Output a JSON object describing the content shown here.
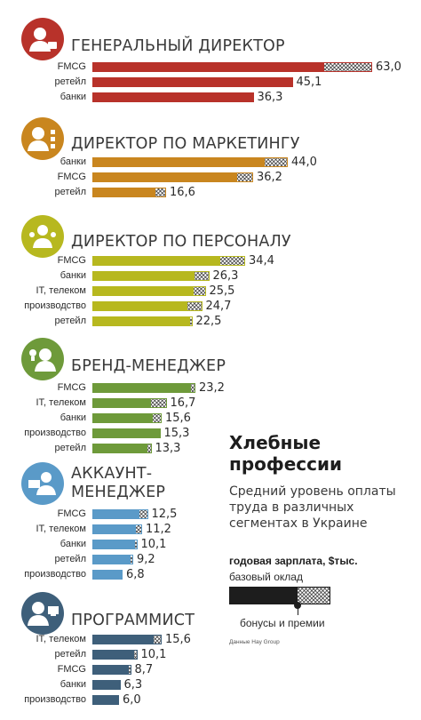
{
  "chart_data": {
    "type": "bar",
    "orientation": "horizontal",
    "stacked_parts": [
      "базовый оклад",
      "бонусы и премии"
    ],
    "title": "Хлебные профессии",
    "subtitle": "Средний уровень оплаты труда в различных сегментах в Украине",
    "unit": "годовая зарплата, $тыс.",
    "legend": {
      "base": "базовый оклад",
      "bonus": "бонусы и премии"
    },
    "source": "Данные Hay Group",
    "groups": [
      {
        "title": "ГЕНЕРАЛЬНЫЙ ДИРЕКТОР",
        "color": "#b8322a",
        "icon": "director-icon",
        "rows": [
          {
            "label": "FMCG",
            "value": 63.0,
            "display": "63,0",
            "bonus": 11.0
          },
          {
            "label": "ретейл",
            "value": 45.1,
            "display": "45,1",
            "bonus": 0
          },
          {
            "label": "банки",
            "value": 36.3,
            "display": "36,3",
            "bonus": 0
          }
        ]
      },
      {
        "title": "ДИРЕКТОР ПО МАРКЕТИНГУ",
        "color": "#c9861f",
        "icon": "marketing-icon",
        "rows": [
          {
            "label": "банки",
            "value": 44.0,
            "display": "44,0",
            "bonus": 5.5
          },
          {
            "label": "FMCG",
            "value": 36.2,
            "display": "36,2",
            "bonus": 3.8
          },
          {
            "label": "ретейл",
            "value": 16.6,
            "display": "16,6",
            "bonus": 2.6
          }
        ]
      },
      {
        "title": "ДИРЕКТОР ПО ПЕРСОНАЛУ",
        "color": "#b7b81f",
        "icon": "hr-icon",
        "rows": [
          {
            "label": "FMCG",
            "value": 34.4,
            "display": "34,4",
            "bonus": 5.8
          },
          {
            "label": "банки",
            "value": 26.3,
            "display": "26,3",
            "bonus": 3.6
          },
          {
            "label": "IT, телеком",
            "value": 25.5,
            "display": "25,5",
            "bonus": 3.0
          },
          {
            "label": "производство",
            "value": 24.7,
            "display": "24,7",
            "bonus": 3.6
          },
          {
            "label": "ретейл",
            "value": 22.5,
            "display": "22,5",
            "bonus": 0.8
          }
        ]
      },
      {
        "title": "БРЕНД-МЕНЕДЖЕР",
        "color": "#6e9a3a",
        "icon": "brand-icon",
        "rows": [
          {
            "label": "FMCG",
            "value": 23.2,
            "display": "23,2",
            "bonus": 1.2
          },
          {
            "label": "IT, телеком",
            "value": 16.7,
            "display": "16,7",
            "bonus": 3.8
          },
          {
            "label": "банки",
            "value": 15.6,
            "display": "15,6",
            "bonus": 2.2
          },
          {
            "label": "производство",
            "value": 15.3,
            "display": "15,3",
            "bonus": 0.4
          },
          {
            "label": "ретейл",
            "value": 13.3,
            "display": "13,3",
            "bonus": 1.2
          }
        ]
      },
      {
        "title": "АККАУНТ-\nМЕНЕДЖЕР",
        "color": "#5a9ac8",
        "icon": "account-icon",
        "rows": [
          {
            "label": "FMCG",
            "value": 12.5,
            "display": "12,5",
            "bonus": 2.2
          },
          {
            "label": "IT, телеком",
            "value": 11.2,
            "display": "11,2",
            "bonus": 1.6
          },
          {
            "label": "банки",
            "value": 10.1,
            "display": "10,1",
            "bonus": 0.8
          },
          {
            "label": "ретейл",
            "value": 9.2,
            "display": "9,2",
            "bonus": 0.8
          },
          {
            "label": "производство",
            "value": 6.8,
            "display": "6,8",
            "bonus": 0.4
          }
        ]
      },
      {
        "title": "ПРОГРАММИСТ",
        "color": "#3e5f7a",
        "icon": "programmer-icon",
        "rows": [
          {
            "label": "IT, телеком",
            "value": 15.6,
            "display": "15,6",
            "bonus": 2.0
          },
          {
            "label": "ретейл",
            "value": 10.1,
            "display": "10,1",
            "bonus": 1.0
          },
          {
            "label": "FMCG",
            "value": 8.7,
            "display": "8,7",
            "bonus": 0.8
          },
          {
            "label": "банки",
            "value": 6.3,
            "display": "6,3",
            "bonus": 0
          },
          {
            "label": "производство",
            "value": 6.0,
            "display": "6,0",
            "bonus": 0
          }
        ]
      }
    ]
  }
}
